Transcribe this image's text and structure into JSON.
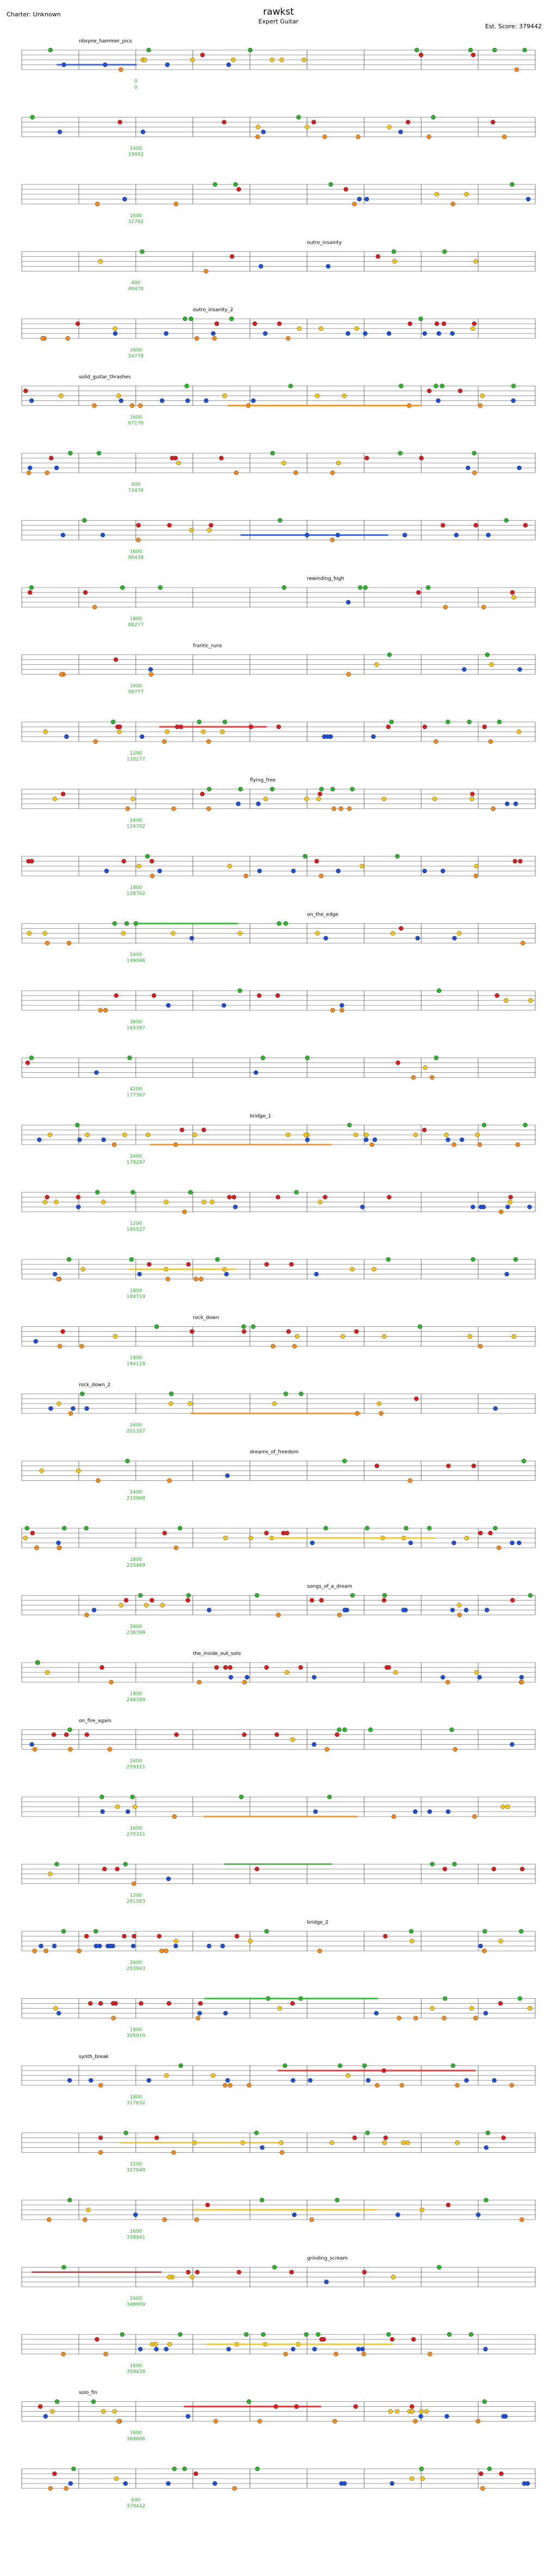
{
  "header": {
    "title": "rawkst",
    "difficulty": "Expert Guitar",
    "charter": "Charter: Unknown",
    "score": "Est. Score: 379442"
  },
  "colors": {
    "green": "#2fb12f",
    "red": "#d62020",
    "yellow": "#f2c318",
    "blue": "#1f4fd1",
    "orange": "#f08a1c",
    "score_text": "#2fb12f",
    "staff": "#777777",
    "section_text": "#000000"
  },
  "chart_data": {
    "type": "scatter",
    "title": "rawkst",
    "lanes": [
      "green",
      "red",
      "yellow",
      "blue",
      "orange"
    ],
    "measures_per_row": 9,
    "rows": [
      {
        "section": "nbsyne_hammer_pics",
        "score": "0",
        "total": "0"
      },
      {
        "section": "",
        "score": "2400",
        "total": "19092"
      },
      {
        "section": "",
        "score": "1600",
        "total": "32782"
      },
      {
        "section": "outro_insanity",
        "score": "400",
        "total": "40478"
      },
      {
        "section": "outro_insanity_2",
        "score": "1600",
        "total": "54778"
      },
      {
        "section": "solid_guitar_thrashes",
        "score": "1600",
        "total": "67176"
      },
      {
        "section": "",
        "score": "400",
        "total": "72476"
      },
      {
        "section": "",
        "score": "1600",
        "total": "80438"
      },
      {
        "section": "rewinding_high",
        "score": "1800",
        "total": "88277"
      },
      {
        "section": "frantic_runs",
        "score": "1600",
        "total": "99777"
      },
      {
        "section": "",
        "score": "1200",
        "total": "110277"
      },
      {
        "section": "flying_free",
        "score": "2400",
        "total": "124702"
      },
      {
        "section": "",
        "score": "1800",
        "total": "138702"
      },
      {
        "section": "on_the_edge",
        "score": "2400",
        "total": "149046"
      },
      {
        "section": "",
        "score": "3600",
        "total": "165397"
      },
      {
        "section": "",
        "score": "4200",
        "total": "177397"
      },
      {
        "section": "bridge_1",
        "score": "2400",
        "total": "179297"
      },
      {
        "section": "",
        "score": "1200",
        "total": "185527"
      },
      {
        "section": "",
        "score": "1800",
        "total": "189719"
      },
      {
        "section": "rock_down",
        "score": "1800",
        "total": "194119"
      },
      {
        "section": "rock_down_2",
        "score": "2400",
        "total": "201327"
      },
      {
        "section": "dreams_of_freedom",
        "score": "2400",
        "total": "210968"
      },
      {
        "section": "",
        "score": "1800",
        "total": "223489"
      },
      {
        "section": "songs_of_a_dream",
        "score": "2400",
        "total": "236399"
      },
      {
        "section": "the_inside_out_solo",
        "score": "1800",
        "total": "248399"
      },
      {
        "section": "on_fire_again",
        "score": "2400",
        "total": "259311"
      },
      {
        "section": "",
        "score": "1600",
        "total": "270311"
      },
      {
        "section": "",
        "score": "1200",
        "total": "281583"
      },
      {
        "section": "bridge_2",
        "score": "2400",
        "total": "293943"
      },
      {
        "section": "",
        "score": "1800",
        "total": "305919"
      },
      {
        "section": "synth_break",
        "score": "1800",
        "total": "317632"
      },
      {
        "section": "",
        "score": "1200",
        "total": "327649"
      },
      {
        "section": "",
        "score": "1600",
        "total": "338941"
      },
      {
        "section": "grinding_scream",
        "score": "2400",
        "total": "348959"
      },
      {
        "section": "",
        "score": "1600",
        "total": "359458"
      },
      {
        "section": "solo_fin",
        "score": "1600",
        "total": "369666"
      },
      {
        "section": "",
        "score": "600",
        "total": "379442"
      }
    ],
    "xlabel": "",
    "ylabel": ""
  }
}
